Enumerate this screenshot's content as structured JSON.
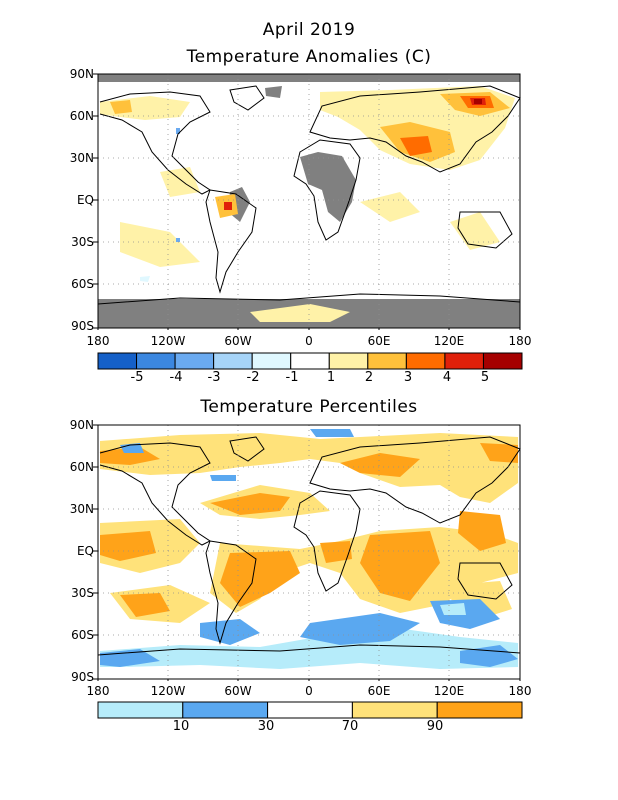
{
  "title_line1": "April 2019",
  "title_line2": "Temperature Anomalies (C)",
  "title_percentiles": "Temperature Percentiles",
  "lat_labels": [
    "90N",
    "60N",
    "30N",
    "EQ",
    "30S",
    "60S",
    "90S"
  ],
  "lon_labels": [
    "180",
    "120W",
    "60W",
    "0",
    "60E",
    "120E",
    "180"
  ],
  "anomaly_colorbar": {
    "colors": [
      "#1560c8",
      "#3b87e0",
      "#6aaaf0",
      "#a6d4f8",
      "#e0f8ff",
      "#ffffff",
      "#fff2a8",
      "#ffc13b",
      "#ff6c00",
      "#e0200a",
      "#a50000"
    ],
    "labels": [
      "-5",
      "-4",
      "-3",
      "-2",
      "-1",
      "1",
      "2",
      "3",
      "4",
      "5"
    ]
  },
  "percentile_colorbar": {
    "colors": [
      "#b6ecfa",
      "#5aa8f0",
      "#ffffff",
      "#ffe27a",
      "#ffa319"
    ],
    "labels": [
      "10",
      "30",
      "70",
      "90"
    ]
  },
  "missing_color": "#808080"
}
